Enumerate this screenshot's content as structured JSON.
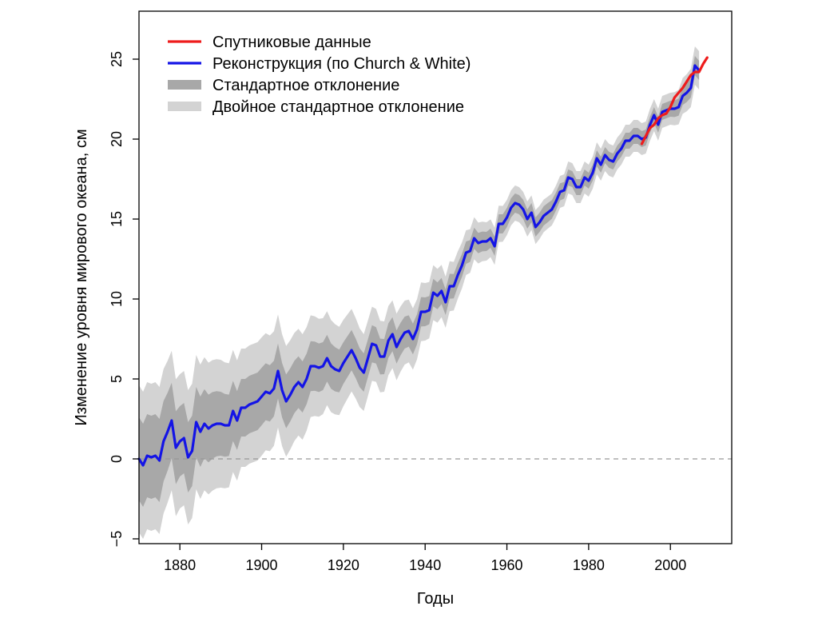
{
  "chart_data": {
    "type": "line",
    "xlabel": "Годы",
    "ylabel": "Изменение уровня мирового океана, см",
    "xlim": [
      1870,
      2015
    ],
    "ylim": [
      -5.3,
      28
    ],
    "x_ticks": [
      1880,
      1900,
      1920,
      1940,
      1960,
      1980,
      2000
    ],
    "y_ticks": [
      -5,
      0,
      5,
      10,
      15,
      20,
      25
    ],
    "grid": false,
    "legend_position": "top-left",
    "reference_line": {
      "y": 0,
      "style": "dashed",
      "color": "#999999"
    },
    "legend": [
      {
        "label": "Спутниковые данные",
        "kind": "line",
        "color": "#ee1c1c"
      },
      {
        "label": "Реконструкция (по Church & White)",
        "kind": "line",
        "color": "#1414e6"
      },
      {
        "label": "Стандартное отклонение",
        "kind": "band",
        "color": "#a8a8a8"
      },
      {
        "label": "Двойное стандартное отклонение",
        "kind": "band",
        "color": "#d3d3d3"
      }
    ],
    "series": [
      {
        "name": "Реконструкция (по Church & White)",
        "color": "#1414e6",
        "x": [
          1870,
          1871,
          1872,
          1873,
          1874,
          1875,
          1876,
          1877,
          1878,
          1879,
          1880,
          1881,
          1882,
          1883,
          1884,
          1885,
          1886,
          1887,
          1888,
          1889,
          1890,
          1891,
          1892,
          1893,
          1894,
          1895,
          1896,
          1897,
          1898,
          1899,
          1900,
          1901,
          1902,
          1903,
          1904,
          1905,
          1906,
          1907,
          1908,
          1909,
          1910,
          1911,
          1912,
          1913,
          1914,
          1915,
          1916,
          1917,
          1918,
          1919,
          1920,
          1921,
          1922,
          1923,
          1924,
          1925,
          1926,
          1927,
          1928,
          1929,
          1930,
          1931,
          1932,
          1933,
          1934,
          1935,
          1936,
          1937,
          1938,
          1939,
          1940,
          1941,
          1942,
          1943,
          1944,
          1945,
          1946,
          1947,
          1948,
          1949,
          1950,
          1951,
          1952,
          1953,
          1954,
          1955,
          1956,
          1957,
          1958,
          1959,
          1960,
          1961,
          1962,
          1963,
          1964,
          1965,
          1966,
          1967,
          1968,
          1969,
          1970,
          1971,
          1972,
          1973,
          1974,
          1975,
          1976,
          1977,
          1978,
          1979,
          1980,
          1981,
          1982,
          1983,
          1984,
          1985,
          1986,
          1987,
          1988,
          1989,
          1990,
          1991,
          1992,
          1993,
          1994,
          1995,
          1996,
          1997,
          1998,
          1999,
          2000,
          2001,
          2002,
          2003,
          2004,
          2005,
          2006,
          2007
        ],
        "values": [
          0.0,
          -0.4,
          0.2,
          0.1,
          0.2,
          -0.1,
          1.1,
          1.7,
          2.4,
          0.7,
          1.1,
          1.3,
          0.1,
          0.5,
          2.3,
          1.7,
          2.2,
          1.9,
          2.1,
          2.2,
          2.2,
          2.1,
          2.1,
          3.0,
          2.4,
          3.2,
          3.2,
          3.4,
          3.5,
          3.6,
          3.9,
          4.2,
          4.1,
          4.4,
          5.5,
          4.3,
          3.6,
          4.0,
          4.5,
          4.8,
          4.5,
          5.0,
          5.8,
          5.8,
          5.7,
          5.8,
          6.3,
          5.8,
          5.6,
          5.5,
          6.0,
          6.4,
          6.8,
          6.3,
          5.7,
          5.4,
          6.3,
          7.2,
          7.1,
          6.4,
          6.4,
          7.4,
          7.8,
          7.0,
          7.5,
          7.9,
          8.0,
          7.5,
          8.1,
          9.2,
          9.2,
          9.3,
          10.4,
          10.2,
          10.5,
          9.8,
          10.8,
          10.8,
          11.5,
          12.1,
          12.9,
          13.0,
          13.8,
          13.5,
          13.6,
          13.6,
          13.8,
          13.3,
          14.7,
          14.7,
          15.1,
          15.7,
          16.0,
          15.9,
          15.6,
          15.0,
          15.4,
          14.5,
          14.8,
          15.2,
          15.4,
          15.6,
          16.1,
          16.7,
          16.8,
          17.6,
          17.5,
          17.0,
          17.0,
          17.6,
          17.4,
          17.9,
          18.8,
          18.4,
          19.0,
          18.7,
          18.6,
          19.1,
          19.4,
          19.9,
          19.9,
          20.2,
          20.2,
          20.0,
          20.1,
          20.9,
          21.5,
          20.9,
          21.7,
          21.8,
          21.9,
          21.9,
          22.0,
          22.7,
          22.9,
          23.2,
          24.6,
          24.3
        ]
      },
      {
        "name": "Спутниковые данные",
        "color": "#ee1c1c",
        "x": [
          1993,
          1994,
          1995,
          1996,
          1997,
          1998,
          1999,
          2000,
          2001,
          2002,
          2003,
          2004,
          2005,
          2006,
          2007,
          2008,
          2009
        ],
        "values": [
          19.7,
          20.2,
          20.7,
          20.9,
          21.3,
          21.5,
          21.6,
          22.0,
          22.6,
          22.9,
          23.2,
          23.6,
          24.0,
          24.2,
          24.2,
          24.7,
          25.1
        ]
      }
    ],
    "uncertainty_bands": {
      "applies_to": "Реконструкция (по Church & White)",
      "x": [
        1870,
        1875,
        1880,
        1885,
        1890,
        1895,
        1900,
        1905,
        1910,
        1915,
        1920,
        1925,
        1930,
        1935,
        1940,
        1945,
        1950,
        1955,
        1960,
        1965,
        1970,
        1975,
        1980,
        1985,
        1990,
        1995,
        2000,
        2005,
        2007
      ],
      "one_sd": [
        2.6,
        2.6,
        2.2,
        2.2,
        2.0,
        1.8,
        1.8,
        1.7,
        1.6,
        1.5,
        1.3,
        1.2,
        1.1,
        1.0,
        0.9,
        0.8,
        0.7,
        0.6,
        0.6,
        0.6,
        0.6,
        0.5,
        0.5,
        0.5,
        0.5,
        0.5,
        0.5,
        0.6,
        0.6
      ],
      "two_sd": [
        4.6,
        4.6,
        4.2,
        4.2,
        4.0,
        3.7,
        3.7,
        3.5,
        3.3,
        3.0,
        2.7,
        2.4,
        2.2,
        2.0,
        1.8,
        1.6,
        1.4,
        1.2,
        1.1,
        1.1,
        1.0,
        1.0,
        1.0,
        1.0,
        1.0,
        1.0,
        1.0,
        1.2,
        1.2
      ]
    }
  }
}
